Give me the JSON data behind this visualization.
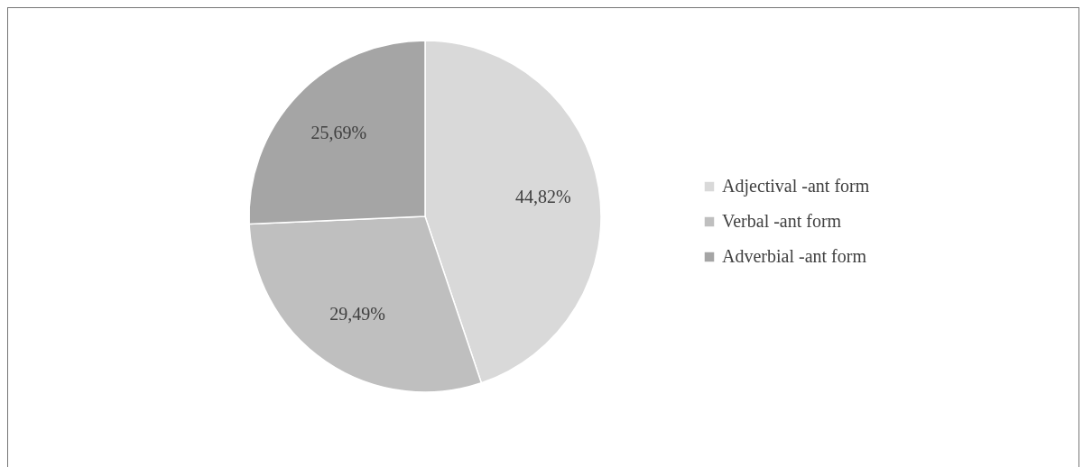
{
  "chart_data": {
    "type": "pie",
    "categories": [
      "Adjectival -ant form",
      "Verbal -ant form",
      "Adverbial -ant form"
    ],
    "values": [
      44.82,
      29.49,
      25.69
    ],
    "value_labels": [
      "44,82%",
      "29,49%",
      "25,69%"
    ],
    "colors": [
      "#d9d9d9",
      "#bfbfbf",
      "#a5a5a5"
    ],
    "legend": "right"
  }
}
